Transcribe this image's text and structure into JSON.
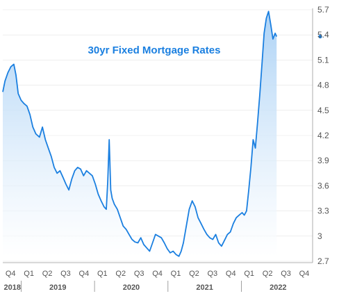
{
  "chart_data": {
    "type": "area",
    "title": "30yr Fixed Mortgage Rates",
    "ylim": [
      2.6,
      5.8
    ],
    "y_ticks": [
      "5.7",
      "5.4",
      "5.1",
      "4.8",
      "4.5",
      "4.2",
      "3.9",
      "3.6",
      "3.3",
      "3",
      "2.7"
    ],
    "x_range": [
      2018.75,
      2022.97
    ],
    "x_quarter_labels": [
      "Q4",
      "Q1",
      "Q2",
      "Q3",
      "Q4",
      "Q1",
      "Q2",
      "Q3",
      "Q4",
      "Q1",
      "Q2",
      "Q3",
      "Q4",
      "Q1",
      "Q2",
      "Q3",
      "Q4"
    ],
    "x_year_labels": [
      "2018",
      "2019",
      "2020",
      "2021",
      "2022"
    ],
    "latest_value": 5.38,
    "colors": {
      "line": "#1a7fe0",
      "area_top": "#a8d0f5",
      "area_bottom": "#ffffff",
      "title": "#1a7fe0",
      "grid": "#e3e3e3",
      "axis": "#999999"
    },
    "series": [
      {
        "x": [
          2018.75,
          2018.78,
          2018.82,
          2018.86,
          2018.9,
          2018.93,
          2018.96,
          2019.0,
          2019.04,
          2019.08,
          2019.12,
          2019.16,
          2019.2,
          2019.25,
          2019.29,
          2019.33,
          2019.37,
          2019.41,
          2019.45,
          2019.49,
          2019.53,
          2019.57,
          2019.61,
          2019.65,
          2019.69,
          2019.73,
          2019.77,
          2019.81,
          2019.85,
          2019.89,
          2019.93,
          2019.97,
          2020.01,
          2020.05,
          2020.09,
          2020.13,
          2020.16,
          2020.18,
          2020.2,
          2020.22,
          2020.24,
          2020.27,
          2020.31,
          2020.35,
          2020.39,
          2020.43,
          2020.47,
          2020.51,
          2020.55,
          2020.59,
          2020.63,
          2020.67,
          2020.71,
          2020.75,
          2020.79,
          2020.83,
          2020.87,
          2020.91,
          2020.95,
          2020.99,
          2021.03,
          2021.07,
          2021.11,
          2021.15,
          2021.18,
          2021.21,
          2021.25,
          2021.29,
          2021.33,
          2021.37,
          2021.41,
          2021.45,
          2021.49,
          2021.53,
          2021.57,
          2021.61,
          2021.65,
          2021.69,
          2021.73,
          2021.77,
          2021.81,
          2021.85,
          2021.89,
          2021.93,
          2021.97,
          2022.01,
          2022.04,
          2022.07,
          2022.1,
          2022.13,
          2022.16,
          2022.19,
          2022.22,
          2022.25,
          2022.28,
          2022.31,
          2022.34,
          2022.37,
          2022.4,
          2022.43,
          2022.46,
          2022.48
        ],
        "y": [
          4.72,
          4.85,
          4.95,
          5.02,
          5.05,
          4.92,
          4.7,
          4.62,
          4.58,
          4.55,
          4.45,
          4.3,
          4.22,
          4.18,
          4.3,
          4.15,
          4.05,
          3.95,
          3.82,
          3.75,
          3.78,
          3.7,
          3.62,
          3.55,
          3.68,
          3.78,
          3.82,
          3.8,
          3.72,
          3.78,
          3.75,
          3.72,
          3.62,
          3.5,
          3.42,
          3.35,
          3.32,
          3.65,
          4.15,
          3.55,
          3.45,
          3.38,
          3.32,
          3.22,
          3.12,
          3.08,
          3.02,
          2.96,
          2.93,
          2.92,
          2.98,
          2.9,
          2.86,
          2.82,
          2.92,
          3.02,
          3.0,
          2.98,
          2.92,
          2.85,
          2.8,
          2.82,
          2.78,
          2.76,
          2.82,
          2.92,
          3.12,
          3.32,
          3.42,
          3.35,
          3.22,
          3.15,
          3.08,
          3.02,
          2.98,
          2.96,
          3.02,
          2.92,
          2.88,
          2.95,
          3.02,
          3.05,
          3.15,
          3.22,
          3.25,
          3.28,
          3.25,
          3.3,
          3.55,
          3.82,
          4.15,
          4.05,
          4.35,
          4.68,
          5.05,
          5.42,
          5.6,
          5.68,
          5.52,
          5.35,
          5.42,
          5.38
        ]
      }
    ]
  }
}
